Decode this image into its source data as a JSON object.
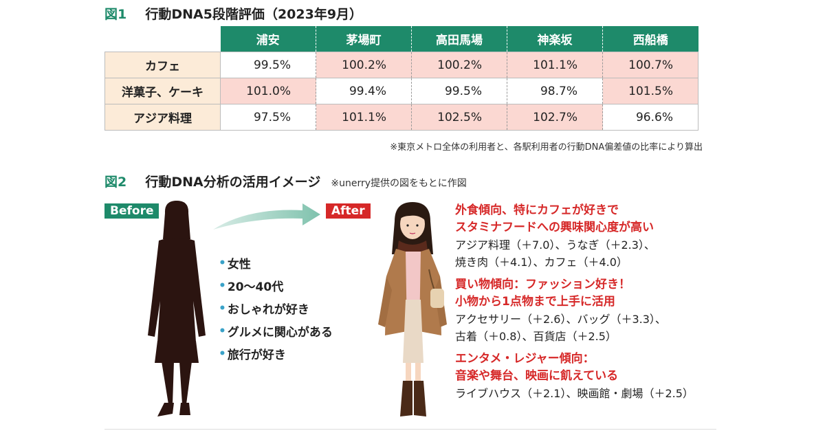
{
  "fig1": {
    "label": "図1",
    "title": "行動DNA5段階評価",
    "title_suffix": "（2023年9月）",
    "columns": [
      "浦安",
      "茅場町",
      "高田馬場",
      "神楽坂",
      "西船橋"
    ],
    "rows": [
      {
        "label": "カフェ",
        "values": [
          "99.5%",
          "100.2%",
          "100.2%",
          "101.1%",
          "100.7%"
        ],
        "highlight": [
          false,
          true,
          true,
          true,
          true
        ]
      },
      {
        "label": "洋菓子、ケーキ",
        "values": [
          "101.0%",
          "99.4%",
          "99.5%",
          "98.7%",
          "101.5%"
        ],
        "highlight": [
          true,
          false,
          false,
          false,
          true
        ]
      },
      {
        "label": "アジア料理",
        "values": [
          "97.5%",
          "101.1%",
          "102.5%",
          "102.7%",
          "96.6%"
        ],
        "highlight": [
          false,
          true,
          true,
          true,
          false
        ]
      }
    ],
    "note": "※東京メトロ全体の利用者と、各駅利用者の行動DNA偏差値の比率により算出",
    "colors": {
      "header": "#1e8a6a",
      "row_header": "#fcebd8",
      "highlight": "#fbd8d2"
    }
  },
  "fig2": {
    "label": "図2",
    "title": "行動DNA分析の活用イメージ",
    "note": "※unerry提供の図をもとに作図",
    "before_tag": "Before",
    "after_tag": "After",
    "profile": [
      "女性",
      "20～40代",
      "おしゃれが好き",
      "グルメに関心がある",
      "旅行が好き"
    ],
    "sections": [
      {
        "heading": [
          "外食傾向、特にカフェが好きで",
          "スタミナフードへの興味関心度が高い"
        ],
        "body": [
          "アジア料理（＋7.0）、うなぎ（＋2.3）、",
          "焼き肉（＋4.1）、カフェ（＋4.0）"
        ]
      },
      {
        "heading": [
          "買い物傾向：ファッション好き！",
          "小物から1点物まで上手に活用"
        ],
        "body": [
          "アクセサリー（＋2.6）、バッグ（＋3.3）、",
          "古着（＋0.8）、百貨店（＋2.5）"
        ]
      },
      {
        "heading": [
          "エンタメ・レジャー傾向：",
          "音楽や舞台、映画に飢えている"
        ],
        "body": [
          "ライブハウス（＋2.1）、映画館・劇場（＋2.5）"
        ]
      }
    ],
    "colors": {
      "before": "#1e8a6a",
      "after": "#d62828",
      "accent_text": "#d62828",
      "bullet": "#3aa2c8"
    }
  }
}
